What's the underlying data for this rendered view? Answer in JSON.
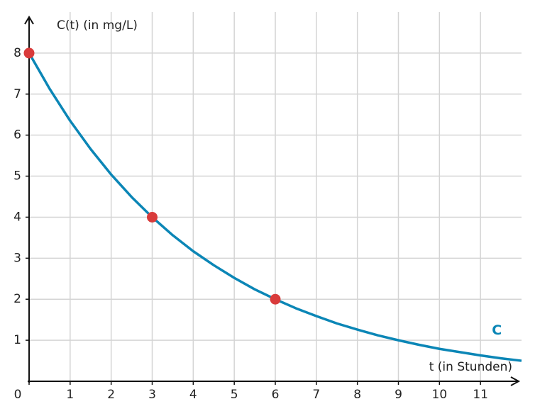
{
  "chart_data": {
    "type": "line",
    "y_label": "C(t) (in mg/L)",
    "x_label": "t (in Stunden)",
    "xlim": [
      0,
      12
    ],
    "ylim": [
      0,
      9
    ],
    "xticks": [
      0,
      1,
      2,
      3,
      4,
      5,
      6,
      7,
      8,
      9,
      10,
      11
    ],
    "yticks": [
      1,
      2,
      3,
      4,
      5,
      6,
      7,
      8
    ],
    "grid": true,
    "series": [
      {
        "name": "C",
        "color": "#0b86b6",
        "type": "line",
        "x": [
          0,
          0.5,
          1,
          1.5,
          2,
          2.5,
          3,
          3.5,
          4,
          4.5,
          5,
          5.5,
          6,
          6.5,
          7,
          7.5,
          8,
          8.5,
          9,
          9.5,
          10,
          10.5,
          11,
          11.5,
          12
        ],
        "values": [
          8,
          7.13,
          6.35,
          5.66,
          5.04,
          4.49,
          4,
          3.56,
          3.17,
          2.83,
          2.52,
          2.24,
          2,
          1.78,
          1.59,
          1.41,
          1.26,
          1.12,
          1,
          0.89,
          0.79,
          0.71,
          0.63,
          0.56,
          0.5
        ]
      },
      {
        "color": "#d93b3b",
        "type": "scatter",
        "x": [
          0,
          3,
          6
        ],
        "values": [
          8,
          4,
          2
        ]
      }
    ]
  }
}
